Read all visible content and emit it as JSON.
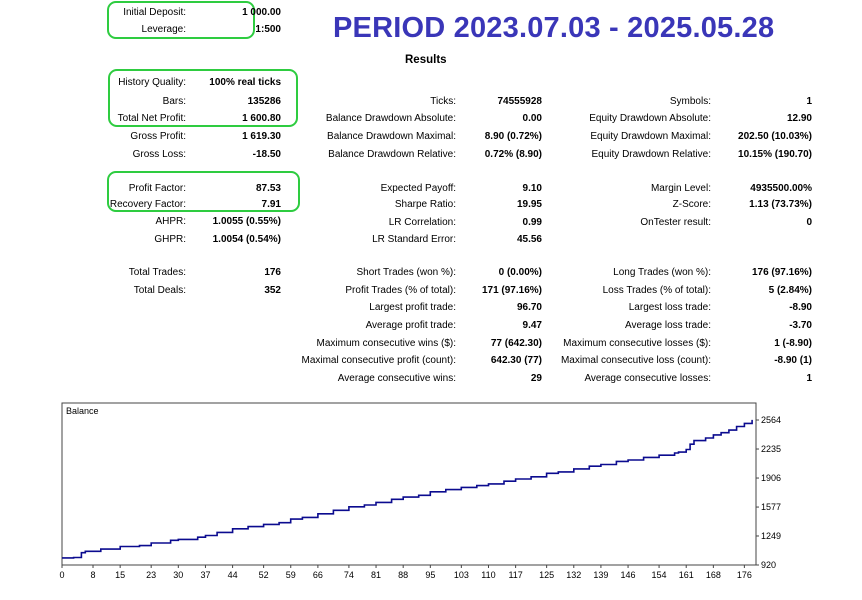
{
  "period_banner": "PERIOD 2023.07.03 - 2025.05.28",
  "results_title": "Results",
  "col1": [
    {
      "label": "Initial Deposit:",
      "value": "1 000.00"
    },
    {
      "label": "Leverage:",
      "value": "1:500"
    },
    {
      "label": "History Quality:",
      "value": "100% real ticks"
    },
    {
      "label": "Bars:",
      "value": "135286"
    },
    {
      "label": "Total Net Profit:",
      "value": "1 600.80"
    },
    {
      "label": "Gross Profit:",
      "value": "1 619.30"
    },
    {
      "label": "Gross Loss:",
      "value": "-18.50"
    },
    {
      "label": "Profit Factor:",
      "value": "87.53"
    },
    {
      "label": "Recovery Factor:",
      "value": "7.91"
    },
    {
      "label": "AHPR:",
      "value": "1.0055 (0.55%)"
    },
    {
      "label": "GHPR:",
      "value": "1.0054 (0.54%)"
    },
    {
      "label": "Total Trades:",
      "value": "176"
    },
    {
      "label": "Total Deals:",
      "value": "352"
    }
  ],
  "col2": [
    {
      "label": "Ticks:",
      "value": "74555928"
    },
    {
      "label": "Balance Drawdown Absolute:",
      "value": "0.00"
    },
    {
      "label": "Balance Drawdown Maximal:",
      "value": "8.90 (0.72%)"
    },
    {
      "label": "Balance Drawdown Relative:",
      "value": "0.72% (8.90)"
    },
    {
      "label": "Expected Payoff:",
      "value": "9.10"
    },
    {
      "label": "Sharpe Ratio:",
      "value": "19.95"
    },
    {
      "label": "LR Correlation:",
      "value": "0.99"
    },
    {
      "label": "LR Standard Error:",
      "value": "45.56"
    },
    {
      "label": "Short Trades (won %):",
      "value": "0 (0.00%)"
    },
    {
      "label": "Profit Trades (% of total):",
      "value": "171 (97.16%)"
    },
    {
      "label": "Largest profit trade:",
      "value": "96.70"
    },
    {
      "label": "Average profit trade:",
      "value": "9.47"
    },
    {
      "label": "Maximum consecutive wins ($):",
      "value": "77 (642.30)"
    },
    {
      "label": "Maximal consecutive profit (count):",
      "value": "642.30 (77)"
    },
    {
      "label": "Average consecutive wins:",
      "value": "29"
    }
  ],
  "col3": [
    {
      "label": "Symbols:",
      "value": "1"
    },
    {
      "label": "Equity Drawdown Absolute:",
      "value": "12.90"
    },
    {
      "label": "Equity Drawdown Maximal:",
      "value": "202.50 (10.03%)"
    },
    {
      "label": "Equity Drawdown Relative:",
      "value": "10.15% (190.70)"
    },
    {
      "label": "Margin Level:",
      "value": "4935500.00%"
    },
    {
      "label": "Z-Score:",
      "value": "1.13 (73.73%)"
    },
    {
      "label": "OnTester result:",
      "value": "0"
    },
    {
      "label": "Long Trades (won %):",
      "value": "176 (97.16%)"
    },
    {
      "label": "Loss Trades (% of total):",
      "value": "5 (2.84%)"
    },
    {
      "label": "Largest loss trade:",
      "value": "-8.90"
    },
    {
      "label": "Average loss trade:",
      "value": "-3.70"
    },
    {
      "label": "Maximum consecutive losses ($):",
      "value": "1 (-8.90)"
    },
    {
      "label": "Maximal consecutive loss (count):",
      "value": "-8.90 (1)"
    },
    {
      "label": "Average consecutive losses:",
      "value": "1"
    }
  ],
  "colors": {
    "banner": "#3a36b8",
    "highlight": "#2ecc40",
    "balance_line": "#0b0b8f"
  },
  "chart_data": {
    "type": "line",
    "title": "Balance",
    "x_ticks": [
      "0",
      "8",
      "15",
      "23",
      "30",
      "37",
      "44",
      "52",
      "59",
      "66",
      "74",
      "81",
      "88",
      "95",
      "103",
      "110",
      "117",
      "125",
      "132",
      "139",
      "146",
      "154",
      "161",
      "168",
      "176"
    ],
    "y_ticks": [
      "920",
      "1249",
      "1577",
      "1906",
      "2235",
      "2564"
    ],
    "xlim": [
      0,
      179
    ],
    "ylim": [
      920,
      2564
    ],
    "series": [
      {
        "values_x": [
          0,
          3,
          5,
          6,
          10,
          15,
          20,
          23,
          28,
          30,
          35,
          37,
          40,
          44,
          48,
          52,
          56,
          59,
          62,
          66,
          70,
          74,
          78,
          81,
          85,
          88,
          92,
          95,
          99,
          103,
          107,
          110,
          114,
          117,
          121,
          125,
          128,
          132,
          136,
          139,
          143,
          146,
          150,
          154,
          158,
          159,
          160,
          161,
          162,
          163,
          166,
          168,
          170,
          172,
          174,
          176,
          178
        ],
        "values_y": [
          1000,
          1005,
          1060,
          1075,
          1100,
          1130,
          1140,
          1170,
          1200,
          1210,
          1235,
          1255,
          1290,
          1330,
          1355,
          1380,
          1400,
          1440,
          1460,
          1500,
          1540,
          1580,
          1600,
          1630,
          1665,
          1690,
          1710,
          1750,
          1775,
          1800,
          1820,
          1840,
          1870,
          1895,
          1920,
          1960,
          1975,
          2010,
          2040,
          2060,
          2095,
          2110,
          2140,
          2165,
          2190,
          2200,
          2200,
          2230,
          2290,
          2330,
          2360,
          2395,
          2420,
          2450,
          2490,
          2525,
          2565
        ]
      }
    ]
  }
}
